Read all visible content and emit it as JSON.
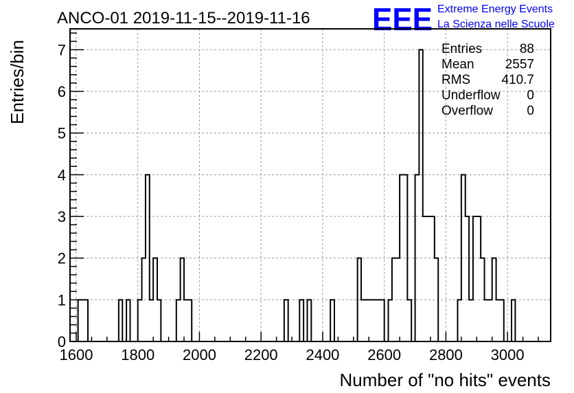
{
  "chart_data": {
    "type": "bar",
    "title": "ANCO-01 2019-11-15--2019-11-16",
    "xlabel": "Number of \"no hits\" events",
    "ylabel": "Entries/bin",
    "xlim": [
      1580,
      3140
    ],
    "ylim": [
      0,
      7.5
    ],
    "x_ticks": [
      "1600",
      "1800",
      "2000",
      "2200",
      "2400",
      "2600",
      "2800",
      "3000"
    ],
    "y_ticks": [
      "0",
      "1",
      "2",
      "3",
      "4",
      "5",
      "6",
      "7"
    ],
    "grid": true,
    "bin_width": 12.5,
    "bins": [
      {
        "x0": 1606,
        "x1": 1638,
        "y": 1
      },
      {
        "x0": 1738,
        "x1": 1750,
        "y": 1
      },
      {
        "x0": 1763,
        "x1": 1775,
        "y": 1
      },
      {
        "x0": 1800,
        "x1": 1813,
        "y": 1
      },
      {
        "x0": 1813,
        "x1": 1825,
        "y": 2
      },
      {
        "x0": 1825,
        "x1": 1838,
        "y": 4
      },
      {
        "x0": 1838,
        "x1": 1850,
        "y": 1
      },
      {
        "x0": 1850,
        "x1": 1863,
        "y": 2
      },
      {
        "x0": 1863,
        "x1": 1875,
        "y": 1
      },
      {
        "x0": 1925,
        "x1": 1938,
        "y": 1
      },
      {
        "x0": 1938,
        "x1": 1950,
        "y": 2
      },
      {
        "x0": 1950,
        "x1": 1975,
        "y": 1
      },
      {
        "x0": 2275,
        "x1": 2288,
        "y": 1
      },
      {
        "x0": 2325,
        "x1": 2338,
        "y": 1
      },
      {
        "x0": 2350,
        "x1": 2363,
        "y": 1
      },
      {
        "x0": 2425,
        "x1": 2438,
        "y": 1
      },
      {
        "x0": 2513,
        "x1": 2525,
        "y": 2
      },
      {
        "x0": 2525,
        "x1": 2600,
        "y": 1
      },
      {
        "x0": 2613,
        "x1": 2625,
        "y": 1
      },
      {
        "x0": 2625,
        "x1": 2650,
        "y": 2
      },
      {
        "x0": 2650,
        "x1": 2675,
        "y": 4
      },
      {
        "x0": 2675,
        "x1": 2688,
        "y": 1
      },
      {
        "x0": 2700,
        "x1": 2713,
        "y": 4
      },
      {
        "x0": 2713,
        "x1": 2725,
        "y": 7
      },
      {
        "x0": 2725,
        "x1": 2763,
        "y": 3
      },
      {
        "x0": 2763,
        "x1": 2775,
        "y": 2
      },
      {
        "x0": 2838,
        "x1": 2850,
        "y": 1
      },
      {
        "x0": 2850,
        "x1": 2863,
        "y": 4
      },
      {
        "x0": 2863,
        "x1": 2875,
        "y": 3
      },
      {
        "x0": 2875,
        "x1": 2888,
        "y": 1
      },
      {
        "x0": 2888,
        "x1": 2913,
        "y": 3
      },
      {
        "x0": 2913,
        "x1": 2925,
        "y": 2
      },
      {
        "x0": 2925,
        "x1": 2950,
        "y": 1
      },
      {
        "x0": 2950,
        "x1": 2963,
        "y": 2
      },
      {
        "x0": 2963,
        "x1": 2988,
        "y": 1
      },
      {
        "x0": 3013,
        "x1": 3025,
        "y": 1
      }
    ],
    "stats_box": {
      "rows": [
        {
          "label": "Entries",
          "value": "88"
        },
        {
          "label": "Mean",
          "value": "2557"
        },
        {
          "label": "RMS",
          "value": "410.7"
        },
        {
          "label": "Underflow",
          "value": "0"
        },
        {
          "label": "Overflow",
          "value": "0"
        }
      ]
    }
  },
  "logo": {
    "text": "EEE",
    "line1": "Extreme Energy Events",
    "line2": "La Scienza nelle Scuole",
    "color": "#0000ff"
  }
}
